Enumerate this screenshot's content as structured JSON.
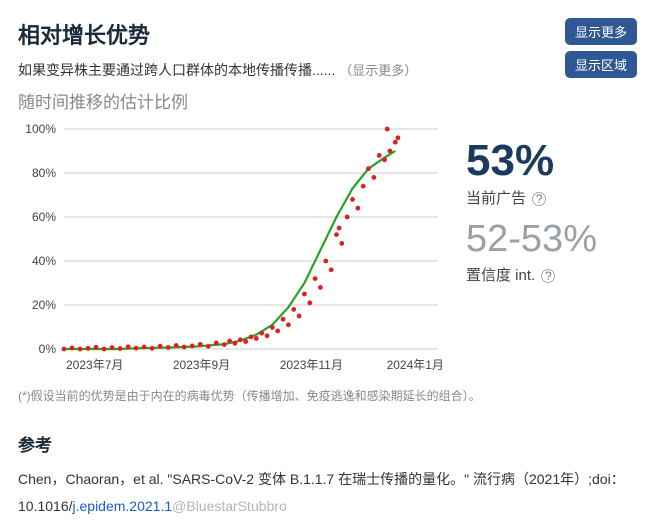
{
  "header": {
    "title": "相对增长优势",
    "subtitle_prefix": "如果变异株主要通过跨人口群体的本地传播传播......",
    "show_more_inline": "（显示更多）",
    "btn_show_more": "显示更多",
    "btn_show_region": "显示区域"
  },
  "chart": {
    "type": "scatter+line",
    "subtitle": "随时间推移的估计比例",
    "background_color": "#ffffff",
    "grid_color": "#cccccc",
    "axis_color": "#444444",
    "axis_fontsize": 12,
    "ylim": [
      0,
      100
    ],
    "yticks": [
      0,
      20,
      40,
      60,
      80,
      100
    ],
    "ytick_labels": [
      "0%",
      "20%",
      "40%",
      "60%",
      "80%",
      "100%"
    ],
    "xlim": [
      0,
      7
    ],
    "xticks": [
      0,
      2,
      4,
      6
    ],
    "xtick_labels": [
      "2023年7月",
      "2023年9月",
      "2023年11月",
      "2024年1月"
    ],
    "curve_color": "#2aa12a",
    "curve_width": 2.2,
    "curve_x": [
      0,
      0.5,
      1,
      1.5,
      2,
      2.5,
      3,
      3.3,
      3.6,
      3.9,
      4.2,
      4.5,
      4.8,
      5.1,
      5.4,
      5.7,
      6.0,
      6.2
    ],
    "curve_y": [
      0,
      0,
      0,
      0.4,
      0.7,
      1.2,
      2.2,
      3.8,
      6.5,
      11,
      19,
      30,
      45,
      60,
      73,
      82,
      87,
      90
    ],
    "dot_color": "#e02020",
    "dot_radius": 2.4,
    "dots_x": [
      0,
      0.15,
      0.3,
      0.45,
      0.6,
      0.75,
      0.9,
      1.05,
      1.2,
      1.35,
      1.5,
      1.65,
      1.8,
      1.95,
      2.1,
      2.25,
      2.4,
      2.55,
      2.7,
      2.85,
      3.0,
      3.1,
      3.2,
      3.3,
      3.4,
      3.5,
      3.6,
      3.7,
      3.8,
      3.9,
      4.0,
      4.1,
      4.2,
      4.3,
      4.4,
      4.5,
      4.6,
      4.7,
      4.8,
      4.9,
      5.0,
      5.1,
      5.15,
      5.2,
      5.3,
      5.4,
      5.5,
      5.6,
      5.7,
      5.8,
      5.9,
      6.0,
      6.05,
      6.1,
      6.2,
      6.25
    ],
    "dots_y": [
      0,
      0.5,
      0,
      0.3,
      0.8,
      0,
      0.6,
      0.2,
      1.0,
      0.4,
      0.9,
      0.3,
      1.3,
      0.7,
      1.6,
      0.9,
      1.4,
      2.1,
      1.2,
      2.8,
      2.0,
      3.6,
      2.6,
      4.2,
      3.4,
      5.5,
      4.8,
      7.2,
      6.0,
      9.8,
      8.2,
      13.5,
      11,
      18,
      15,
      25,
      21,
      32,
      28,
      40,
      36,
      52,
      55,
      48,
      60,
      68,
      64,
      74,
      82,
      78,
      88,
      86,
      100,
      90,
      94,
      96
    ]
  },
  "stats": {
    "current_pct": "53%",
    "current_label": "当前广告",
    "ci_value": "52-53%",
    "ci_label": "置信度 int.",
    "help_glyph": "?",
    "pct_color": "#1b3a5c",
    "ci_color": "#9aa0a6"
  },
  "footnote": "(*)假设当前的优势是由于内在的病毒优势（传播增加、免疫逃逸和感染期延长的组合）。",
  "references": {
    "heading": "参考",
    "text_prefix": "Chen，Chaoran，et al. \"SARS-CoV-2 变体 B.1.1.7 在瑞士传播的量化。\" 流行病（2021年）;doi：10.1016/",
    "doi_link": "j.epidem.2021.1",
    "watermark": "@BluestarStubbro"
  }
}
